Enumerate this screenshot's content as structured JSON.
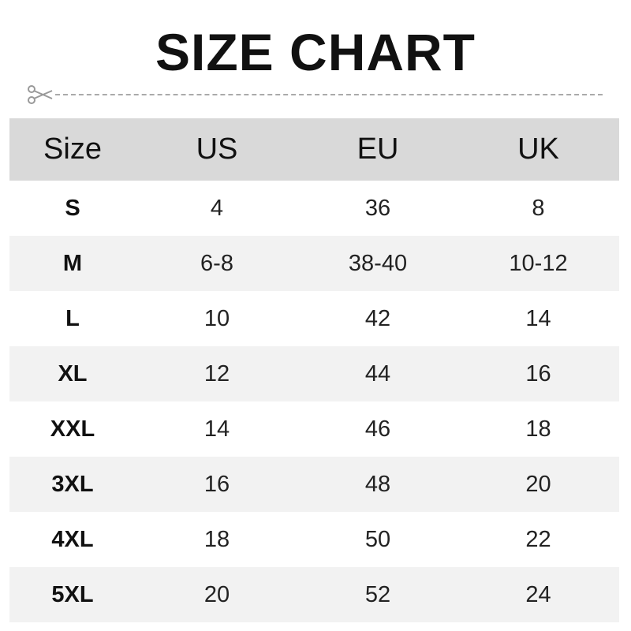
{
  "title": "SIZE CHART",
  "icon": "scissors-icon",
  "colors": {
    "header_bg": "#d9d9d9",
    "alt_row_bg": "#f2f2f2"
  },
  "headers": [
    "Size",
    "US",
    "EU",
    "UK"
  ],
  "rows": [
    [
      "S",
      "4",
      "36",
      "8"
    ],
    [
      "M",
      "6-8",
      "38-40",
      "10-12"
    ],
    [
      "L",
      "10",
      "42",
      "14"
    ],
    [
      "XL",
      "12",
      "44",
      "16"
    ],
    [
      "XXL",
      "14",
      "46",
      "18"
    ],
    [
      "3XL",
      "16",
      "48",
      "20"
    ],
    [
      "4XL",
      "18",
      "50",
      "22"
    ],
    [
      "5XL",
      "20",
      "52",
      "24"
    ]
  ]
}
